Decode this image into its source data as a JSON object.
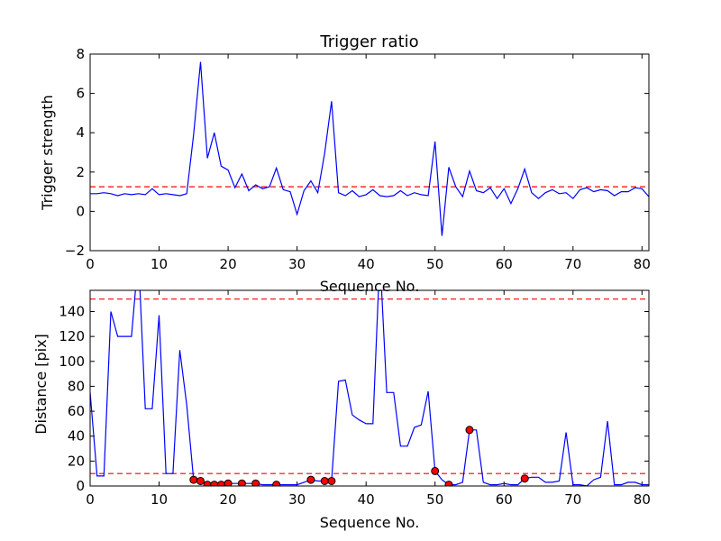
{
  "chart_data": [
    {
      "type": "line",
      "title": "Trigger ratio",
      "xlabel": "Sequence No.",
      "ylabel": "Trigger strength",
      "xlim": [
        0,
        81
      ],
      "ylim": [
        -2,
        8
      ],
      "xticks": [
        0,
        10,
        20,
        30,
        40,
        50,
        60,
        70,
        80
      ],
      "yticks": [
        -2,
        0,
        2,
        4,
        6,
        8
      ],
      "grid": false,
      "line_color": "#0000ff",
      "series": [
        {
          "x": [
            0,
            1,
            2,
            3,
            4,
            5,
            6,
            7,
            8,
            9,
            10,
            11,
            12,
            13,
            14,
            15,
            16,
            17,
            18,
            19,
            20,
            21,
            22,
            23,
            24,
            25,
            26,
            27,
            28,
            29,
            30,
            31,
            32,
            33,
            34,
            35,
            36,
            37,
            38,
            39,
            40,
            41,
            42,
            43,
            44,
            45,
            46,
            47,
            48,
            49,
            50,
            51,
            52,
            53,
            54,
            55,
            56,
            57,
            58,
            59,
            60,
            61,
            62,
            63,
            64,
            65,
            66,
            67,
            68,
            69,
            70,
            71,
            72,
            73,
            74,
            75,
            76,
            77,
            78,
            79,
            80,
            81
          ],
          "values": [
            0.9,
            0.9,
            0.95,
            0.9,
            0.8,
            0.9,
            0.85,
            0.9,
            0.85,
            1.15,
            0.85,
            0.9,
            0.85,
            0.8,
            0.9,
            3.9,
            7.6,
            2.7,
            4.0,
            2.3,
            2.1,
            1.2,
            1.9,
            1.05,
            1.35,
            1.15,
            1.25,
            2.2,
            1.1,
            1.0,
            -0.15,
            1.05,
            1.55,
            0.95,
            2.95,
            5.6,
            0.95,
            0.8,
            1.05,
            0.75,
            0.85,
            1.1,
            0.8,
            0.75,
            0.8,
            1.05,
            0.8,
            0.95,
            0.85,
            0.8,
            3.55,
            -1.25,
            2.25,
            1.25,
            0.75,
            2.05,
            1.05,
            0.95,
            1.2,
            0.65,
            1.15,
            0.4,
            1.15,
            2.15,
            0.95,
            0.65,
            0.95,
            1.1,
            0.9,
            0.95,
            0.65,
            1.1,
            1.2,
            1.0,
            1.1,
            1.05,
            0.8,
            1.0,
            1.0,
            1.2,
            1.15,
            0.75
          ]
        }
      ],
      "reference_lines": [
        {
          "y": 1.25,
          "color": "#ff0000",
          "style": "dashed"
        }
      ]
    },
    {
      "type": "line",
      "title": "",
      "xlabel": "Sequence No.",
      "ylabel": "Distance [pix]",
      "xlim": [
        0,
        81
      ],
      "ylim": [
        0,
        157
      ],
      "xticks": [
        0,
        10,
        20,
        30,
        40,
        50,
        60,
        70,
        80
      ],
      "yticks": [
        0,
        20,
        40,
        60,
        80,
        100,
        120,
        140
      ],
      "grid": false,
      "line_color": "#0000ff",
      "marker_color": "#ff0000",
      "series": [
        {
          "x": [
            0,
            1,
            2,
            3,
            4,
            5,
            6,
            7,
            8,
            9,
            10,
            11,
            12,
            13,
            14,
            15,
            16,
            17,
            18,
            19,
            20,
            21,
            22,
            23,
            24,
            25,
            26,
            27,
            28,
            29,
            30,
            31,
            32,
            33,
            34,
            35,
            36,
            37,
            38,
            39,
            40,
            41,
            42,
            43,
            44,
            45,
            46,
            47,
            48,
            49,
            50,
            51,
            52,
            53,
            54,
            55,
            56,
            57,
            58,
            59,
            60,
            61,
            62,
            63,
            64,
            65,
            66,
            67,
            68,
            69,
            70,
            71,
            72,
            73,
            74,
            75,
            76,
            77,
            78,
            79,
            80,
            81
          ],
          "values": [
            75,
            8,
            8,
            140,
            120,
            120,
            120,
            185,
            62,
            62,
            137,
            10,
            10,
            109,
            65,
            5,
            4,
            1,
            1,
            1,
            2,
            2,
            2,
            2,
            2,
            1,
            1,
            1,
            1,
            1,
            1,
            3,
            5,
            4,
            4,
            4,
            84,
            85,
            57,
            53,
            50,
            50,
            185,
            75,
            75,
            32,
            32,
            47,
            49,
            76,
            12,
            5,
            1,
            1,
            3,
            45,
            45,
            3,
            1,
            1,
            2,
            1,
            1,
            6,
            7,
            7,
            3,
            3,
            4,
            43,
            1,
            1,
            0,
            5,
            7,
            52,
            1,
            1,
            3,
            3,
            1,
            1
          ]
        },
        {
          "name": "",
          "marker": "circle",
          "x": [
            15,
            16,
            17,
            18,
            19,
            20,
            22,
            24,
            27,
            32,
            34,
            35,
            50,
            52,
            55,
            63
          ],
          "values": [
            5,
            4,
            1,
            1,
            1,
            2,
            2,
            2,
            1,
            5,
            4,
            4,
            12,
            1,
            45,
            6
          ]
        }
      ],
      "reference_lines": [
        {
          "y": 10,
          "color": "#ff0000",
          "style": "dashed"
        },
        {
          "y": 150,
          "color": "#ff0000",
          "style": "dashed"
        }
      ]
    }
  ]
}
